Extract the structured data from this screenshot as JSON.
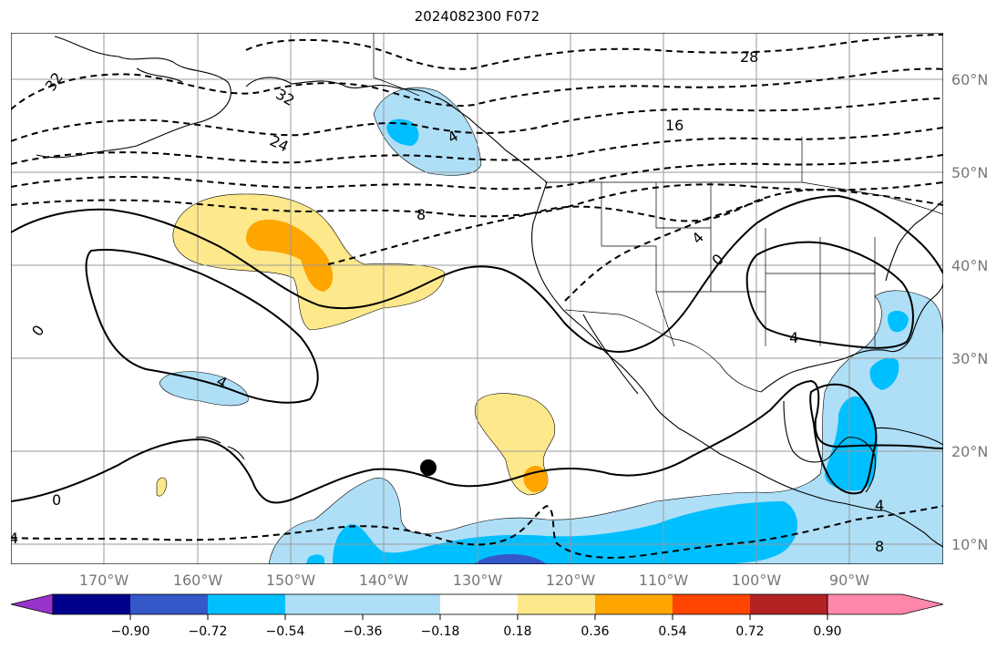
{
  "title": "2024082300 F072",
  "map": {
    "lon_labels": [
      "170°W",
      "160°W",
      "150°W",
      "140°W",
      "130°W",
      "120°W",
      "110°W",
      "100°W",
      "90°W"
    ],
    "lat_labels": [
      "60°N",
      "50°N",
      "40°N",
      "30°N",
      "20°N",
      "10°N"
    ],
    "contour_labels": [
      "32",
      "32",
      "28",
      "24",
      "16",
      "8",
      "4",
      "0",
      "0",
      "4",
      "4",
      "0",
      "4",
      "4",
      "8",
      "4"
    ],
    "colors": {
      "land_outline": "#000000",
      "grid": "#999999",
      "pos1": "#fde98b",
      "pos2": "#ffa500",
      "neg1": "#aedff7",
      "neg2": "#00bfff",
      "neg3": "#3558c8",
      "marker": "#000000"
    }
  },
  "colorbar": {
    "colors": [
      "#9933cc",
      "#00008b",
      "#3558c8",
      "#00bfff",
      "#aedff7",
      "#ffffff",
      "#fde98b",
      "#ffa500",
      "#ff4500",
      "#b22222",
      "#ff88aa"
    ],
    "tick_labels": [
      "−0.90",
      "−0.72",
      "−0.54",
      "−0.36",
      "−0.18",
      "0.18",
      "0.36",
      "0.54",
      "0.72",
      "0.90"
    ]
  }
}
